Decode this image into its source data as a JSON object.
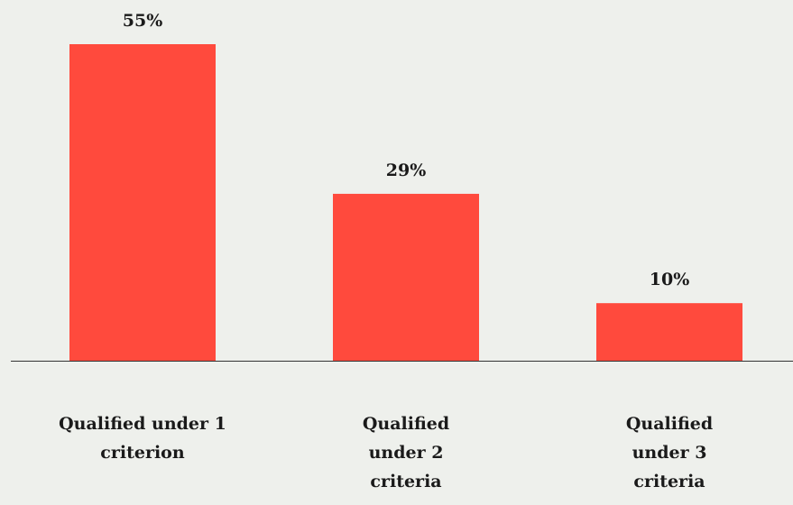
{
  "chart_data": {
    "type": "bar",
    "categories": [
      "Qualified under 1 criterion",
      "Qualified under 2 criteria",
      "Qualified under 3 criteria"
    ],
    "values": [
      55,
      29,
      10
    ],
    "value_labels": [
      "55%",
      "29%",
      "10%"
    ],
    "color": "#ff4a3d"
  }
}
